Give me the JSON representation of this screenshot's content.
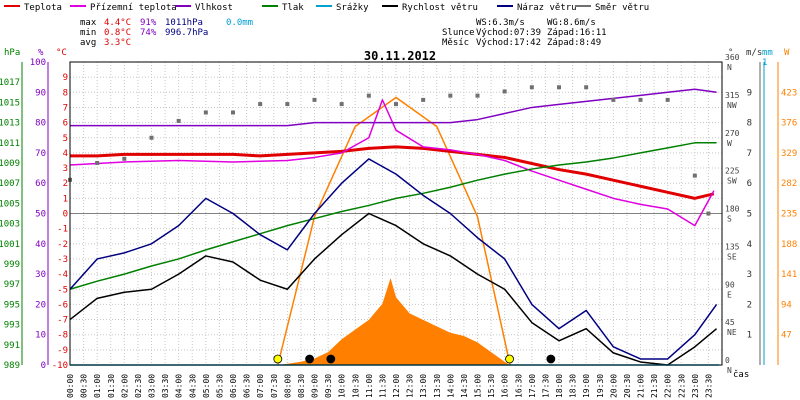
{
  "legend": [
    {
      "label": "Teplota",
      "color": "#e00000"
    },
    {
      "label": "Přízemní teplota",
      "color": "#e000e0"
    },
    {
      "label": "Vlhkost",
      "color": "#8000c0"
    },
    {
      "label": "Tlak",
      "color": "#008000"
    },
    {
      "label": "Srážky",
      "color": "#00a0d0"
    },
    {
      "label": "Rychlost větru",
      "color": "#000000"
    },
    {
      "label": "Náraz větru",
      "color": "#000080"
    },
    {
      "label": "Směr větru",
      "color": "#707070"
    }
  ],
  "stats": {
    "max": {
      "label": "max",
      "temp": "4.4°C",
      "hum": "91%",
      "press": "1011hPa",
      "rain": "0.0mm"
    },
    "min": {
      "label": "min",
      "temp": "0.8°C",
      "hum": "74%",
      "press": "996.7hPa"
    },
    "avg": {
      "label": "avg",
      "temp": "3.3°C"
    }
  },
  "wind_info": {
    "ws": "WS:6.3m/s",
    "wg": "WG:8.6m/s"
  },
  "sun": {
    "label": "Slunce",
    "rise": "Východ:07:39",
    "set": "Západ:16:11"
  },
  "moon": {
    "label": "Měsíc",
    "rise": "Východ:17:42",
    "set": "Západ:8:49"
  },
  "title": "30.11.2012",
  "x_axis_label": "čas",
  "axis_units": {
    "press": "hPa",
    "hum": "%",
    "temp": "°C",
    "dir": "°",
    "speed": "m/s",
    "rain": "mm",
    "solar": "W"
  },
  "colors": {
    "frame": "#000000",
    "grid": "#c8c8c8",
    "solar": "#ff8000",
    "sun_marker": "#ffff00"
  },
  "chart_data": {
    "type": "line",
    "title": "30.11.2012",
    "x": {
      "unit": "time",
      "range": [
        "00:00",
        "23:59"
      ],
      "ticks": [
        "00:00",
        "00:30",
        "01:00",
        "01:30",
        "02:00",
        "02:30",
        "03:00",
        "03:30",
        "04:00",
        "04:30",
        "05:00",
        "05:30",
        "06:00",
        "06:30",
        "07:00",
        "07:30",
        "08:00",
        "08:30",
        "09:00",
        "09:30",
        "10:00",
        "10:30",
        "11:00",
        "11:30",
        "12:00",
        "12:30",
        "13:00",
        "13:30",
        "14:00",
        "14:30",
        "15:00",
        "15:30",
        "16:00",
        "16:30",
        "17:00",
        "17:30",
        "18:00",
        "18:30",
        "19:00",
        "19:30",
        "20:00",
        "20:30",
        "21:00",
        "21:30",
        "22:00",
        "22:30",
        "23:00",
        "23:30"
      ]
    },
    "axes": {
      "pressure_hpa": {
        "range": [
          989,
          1019
        ],
        "ticks": [
          989,
          991,
          993,
          995,
          997,
          999,
          1001,
          1003,
          1005,
          1007,
          1009,
          1011,
          1013,
          1015,
          1017
        ]
      },
      "humidity_pct": {
        "range": [
          0,
          100
        ],
        "ticks": [
          0,
          10,
          20,
          30,
          40,
          50,
          60,
          70,
          80,
          90,
          100
        ]
      },
      "temperature_c": {
        "range": [
          -10,
          10
        ],
        "ticks": [
          -10,
          -9,
          -8,
          -7,
          -6,
          -5,
          -4,
          -3,
          -2,
          -1,
          0,
          1,
          2,
          3,
          4,
          5,
          6,
          7,
          8,
          9
        ]
      },
      "direction": {
        "range": [
          0,
          360
        ],
        "ticks": [
          {
            "v": 0,
            "l": "0 N"
          },
          {
            "v": 45,
            "l": "45 NE"
          },
          {
            "v": 90,
            "l": "90 E"
          },
          {
            "v": 135,
            "l": "135 SE"
          },
          {
            "v": 180,
            "l": "180 S"
          },
          {
            "v": 225,
            "l": "225 SW"
          },
          {
            "v": 270,
            "l": "270 W"
          },
          {
            "v": 315,
            "l": "315 NW"
          },
          {
            "v": 360,
            "l": "360 N"
          }
        ]
      },
      "speed_ms": {
        "range": [
          0,
          10
        ],
        "ticks": [
          1,
          2,
          3,
          4,
          5,
          6,
          7,
          8,
          9
        ]
      },
      "rain_mm": {
        "range": [
          0,
          1
        ],
        "ticks": [
          1
        ]
      },
      "solar_w": {
        "range": [
          0,
          470
        ],
        "ticks": [
          47,
          94,
          141,
          188,
          235,
          282,
          329,
          376,
          423
        ]
      }
    },
    "series": [
      {
        "name": "Teplota",
        "axis": "temperature_c",
        "color": "#e00000",
        "points": [
          [
            0,
            3.8
          ],
          [
            1,
            3.8
          ],
          [
            2,
            3.9
          ],
          [
            3,
            3.9
          ],
          [
            4,
            3.9
          ],
          [
            5,
            3.9
          ],
          [
            6,
            3.9
          ],
          [
            7,
            3.8
          ],
          [
            8,
            3.9
          ],
          [
            9,
            4.0
          ],
          [
            10,
            4.1
          ],
          [
            11,
            4.3
          ],
          [
            12,
            4.4
          ],
          [
            13,
            4.3
          ],
          [
            14,
            4.1
          ],
          [
            15,
            3.9
          ],
          [
            16,
            3.7
          ],
          [
            17,
            3.3
          ],
          [
            18,
            2.9
          ],
          [
            19,
            2.6
          ],
          [
            20,
            2.2
          ],
          [
            21,
            1.8
          ],
          [
            22,
            1.4
          ],
          [
            23,
            1.0
          ],
          [
            23.7,
            1.3
          ]
        ]
      },
      {
        "name": "Přízemní teplota",
        "axis": "temperature_c",
        "color": "#e000e0",
        "points": [
          [
            0,
            3.2
          ],
          [
            2,
            3.4
          ],
          [
            4,
            3.5
          ],
          [
            6,
            3.4
          ],
          [
            8,
            3.5
          ],
          [
            9,
            3.7
          ],
          [
            10,
            4.0
          ],
          [
            11,
            5.0
          ],
          [
            11.5,
            7.5
          ],
          [
            12,
            5.5
          ],
          [
            13,
            4.4
          ],
          [
            14,
            4.2
          ],
          [
            15,
            3.9
          ],
          [
            16,
            3.5
          ],
          [
            17,
            2.8
          ],
          [
            18,
            2.2
          ],
          [
            19,
            1.6
          ],
          [
            20,
            1.0
          ],
          [
            21,
            0.6
          ],
          [
            22,
            0.3
          ],
          [
            23,
            -0.8
          ],
          [
            23.7,
            1.5
          ]
        ]
      },
      {
        "name": "Vlhkost",
        "axis": "humidity_pct",
        "color": "#8000c0",
        "points": [
          [
            0,
            79
          ],
          [
            1,
            79
          ],
          [
            2,
            79
          ],
          [
            3,
            79
          ],
          [
            4,
            79
          ],
          [
            5,
            79
          ],
          [
            6,
            79
          ],
          [
            7,
            79
          ],
          [
            8,
            79
          ],
          [
            9,
            80
          ],
          [
            10,
            80
          ],
          [
            11,
            80
          ],
          [
            12,
            80
          ],
          [
            13,
            80
          ],
          [
            14,
            80
          ],
          [
            15,
            81
          ],
          [
            16,
            83
          ],
          [
            17,
            85
          ],
          [
            18,
            86
          ],
          [
            19,
            87
          ],
          [
            20,
            88
          ],
          [
            21,
            89
          ],
          [
            22,
            90
          ],
          [
            23,
            91
          ],
          [
            23.8,
            90
          ]
        ]
      },
      {
        "name": "Tlak",
        "axis": "pressure_hpa",
        "color": "#008000",
        "points": [
          [
            0,
            996.5
          ],
          [
            1,
            997.3
          ],
          [
            2,
            998.0
          ],
          [
            3,
            998.8
          ],
          [
            4,
            999.5
          ],
          [
            5,
            1000.4
          ],
          [
            6,
            1001.2
          ],
          [
            7,
            1002.0
          ],
          [
            8,
            1002.8
          ],
          [
            9,
            1003.5
          ],
          [
            10,
            1004.2
          ],
          [
            11,
            1004.8
          ],
          [
            12,
            1005.5
          ],
          [
            13,
            1006.0
          ],
          [
            14,
            1006.6
          ],
          [
            15,
            1007.3
          ],
          [
            16,
            1007.9
          ],
          [
            17,
            1008.4
          ],
          [
            18,
            1008.8
          ],
          [
            19,
            1009.1
          ],
          [
            20,
            1009.5
          ],
          [
            21,
            1010.0
          ],
          [
            22,
            1010.5
          ],
          [
            23,
            1011.0
          ],
          [
            23.8,
            1011.0
          ]
        ]
      },
      {
        "name": "Rychlost větru",
        "axis": "speed_ms",
        "color": "#000000",
        "points": [
          [
            0,
            1.5
          ],
          [
            1,
            2.2
          ],
          [
            2,
            2.4
          ],
          [
            3,
            2.5
          ],
          [
            4,
            3.0
          ],
          [
            5,
            3.6
          ],
          [
            6,
            3.4
          ],
          [
            7,
            2.8
          ],
          [
            8,
            2.5
          ],
          [
            9,
            3.5
          ],
          [
            10,
            4.3
          ],
          [
            11,
            5.0
          ],
          [
            12,
            4.6
          ],
          [
            13,
            4.0
          ],
          [
            14,
            3.6
          ],
          [
            15,
            3.0
          ],
          [
            16,
            2.5
          ],
          [
            17,
            1.4
          ],
          [
            18,
            0.8
          ],
          [
            19,
            1.2
          ],
          [
            20,
            0.4
          ],
          [
            21,
            0.1
          ],
          [
            22,
            0.0
          ],
          [
            23,
            0.6
          ],
          [
            23.8,
            1.2
          ]
        ]
      },
      {
        "name": "Náraz větru",
        "axis": "speed_ms",
        "color": "#000080",
        "points": [
          [
            0,
            2.5
          ],
          [
            1,
            3.5
          ],
          [
            2,
            3.7
          ],
          [
            3,
            4.0
          ],
          [
            4,
            4.6
          ],
          [
            5,
            5.5
          ],
          [
            6,
            5.0
          ],
          [
            7,
            4.3
          ],
          [
            8,
            3.8
          ],
          [
            9,
            5.0
          ],
          [
            10,
            6.0
          ],
          [
            11,
            6.8
          ],
          [
            12,
            6.3
          ],
          [
            13,
            5.6
          ],
          [
            14,
            5.0
          ],
          [
            15,
            4.2
          ],
          [
            16,
            3.5
          ],
          [
            17,
            2.0
          ],
          [
            18,
            1.2
          ],
          [
            19,
            1.8
          ],
          [
            20,
            0.6
          ],
          [
            21,
            0.2
          ],
          [
            22,
            0.2
          ],
          [
            23,
            1.0
          ],
          [
            23.8,
            2.0
          ]
        ]
      },
      {
        "name": "Směr větru",
        "axis": "direction",
        "color": "#707070",
        "type": "scatter",
        "points": [
          [
            0,
            220
          ],
          [
            1,
            240
          ],
          [
            2,
            245
          ],
          [
            3,
            270
          ],
          [
            4,
            290
          ],
          [
            5,
            300
          ],
          [
            6,
            300
          ],
          [
            7,
            310
          ],
          [
            8,
            310
          ],
          [
            9,
            315
          ],
          [
            10,
            310
          ],
          [
            11,
            320
          ],
          [
            12,
            310
          ],
          [
            13,
            315
          ],
          [
            14,
            320
          ],
          [
            15,
            320
          ],
          [
            16,
            325
          ],
          [
            17,
            330
          ],
          [
            18,
            330
          ],
          [
            19,
            330
          ],
          [
            20,
            315
          ],
          [
            21,
            315
          ],
          [
            22,
            315
          ],
          [
            23,
            225
          ],
          [
            23.5,
            180
          ]
        ]
      },
      {
        "name": "Srážky",
        "axis": "rain_mm",
        "color": "#00a0d0",
        "points": [
          [
            0,
            0
          ],
          [
            23.9,
            0
          ]
        ]
      }
    ],
    "solar": {
      "axis": "solar_w",
      "color": "#ff8000",
      "clear_sky_curve": [
        [
          7.65,
          0
        ],
        [
          9,
          230
        ],
        [
          10.5,
          370
        ],
        [
          12,
          415
        ],
        [
          13.5,
          370
        ],
        [
          15,
          230
        ],
        [
          16.2,
          0
        ]
      ],
      "measured": [
        [
          7.7,
          0
        ],
        [
          8.5,
          5
        ],
        [
          9,
          10
        ],
        [
          9.5,
          20
        ],
        [
          10,
          40
        ],
        [
          10.5,
          55
        ],
        [
          11,
          70
        ],
        [
          11.5,
          95
        ],
        [
          11.8,
          135
        ],
        [
          12,
          105
        ],
        [
          12.5,
          80
        ],
        [
          13,
          70
        ],
        [
          13.5,
          60
        ],
        [
          14,
          50
        ],
        [
          14.5,
          45
        ],
        [
          15,
          35
        ],
        [
          15.5,
          20
        ],
        [
          16,
          5
        ],
        [
          16.2,
          0
        ]
      ]
    },
    "markers": [
      {
        "type": "sunrise",
        "time": 7.65,
        "color": "#ffff00"
      },
      {
        "type": "moonset",
        "time": 8.82,
        "color": "#000000"
      },
      {
        "type": "moonset",
        "time": 9.6,
        "color": "#000000"
      },
      {
        "type": "sunset",
        "time": 16.18,
        "color": "#ffff00"
      },
      {
        "type": "moonrise",
        "time": 17.7,
        "color": "#000000"
      }
    ]
  }
}
